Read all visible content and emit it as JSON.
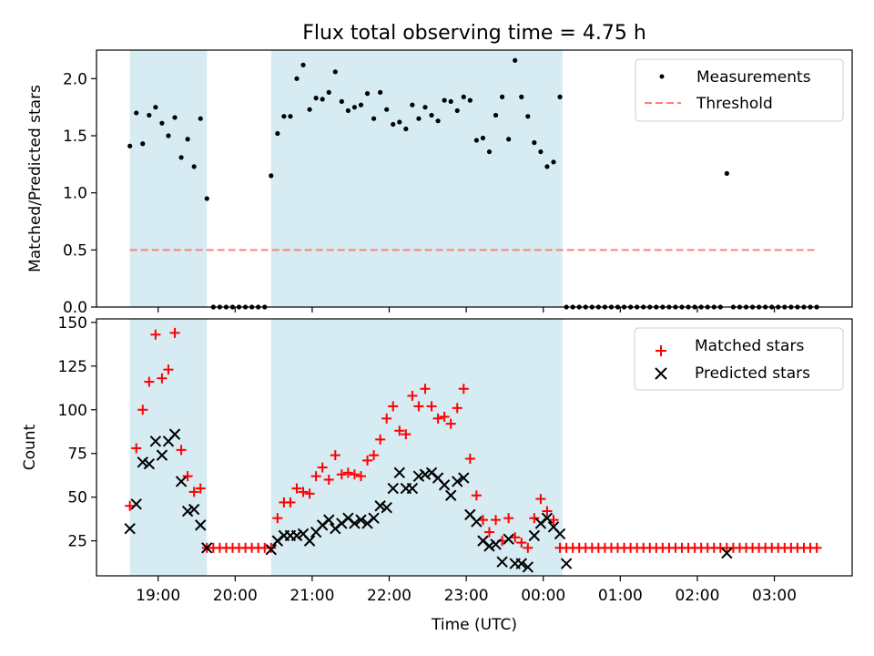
{
  "chart_data": [
    {
      "type": "scatter",
      "title": "Flux total observing time = 4.75 h",
      "ylabel": "Matched/Predicted stars",
      "ylim": [
        0,
        2.25
      ],
      "yticks": [
        "0.0",
        "0.5",
        "1.0",
        "1.5",
        "2.0"
      ],
      "shaded_intervals": [
        [
          "18:38",
          "19:38"
        ],
        [
          "20:28",
          "00:15"
        ]
      ],
      "shade_color": "#add8e6",
      "threshold": 0.5,
      "legend_position": "upper right",
      "series": [
        {
          "name": "Measurements",
          "marker": "dot",
          "color": "#000000",
          "x": [
            "18:38",
            "18:43",
            "18:48",
            "18:53",
            "18:58",
            "19:03",
            "19:08",
            "19:13",
            "19:18",
            "19:23",
            "19:28",
            "19:33",
            "19:38",
            "19:43",
            "19:48",
            "19:53",
            "19:58",
            "20:03",
            "20:08",
            "20:13",
            "20:18",
            "20:23",
            "20:28",
            "20:33",
            "20:38",
            "20:43",
            "20:48",
            "20:53",
            "20:58",
            "21:03",
            "21:08",
            "21:13",
            "21:18",
            "21:23",
            "21:28",
            "21:33",
            "21:38",
            "21:43",
            "21:48",
            "21:53",
            "21:58",
            "22:03",
            "22:08",
            "22:13",
            "22:18",
            "22:23",
            "22:28",
            "22:33",
            "22:38",
            "22:43",
            "22:48",
            "22:53",
            "22:58",
            "23:03",
            "23:08",
            "23:13",
            "23:18",
            "23:23",
            "23:28",
            "23:33",
            "23:38",
            "23:43",
            "23:48",
            "23:53",
            "23:58",
            "00:03",
            "00:08",
            "00:13",
            "00:18",
            "00:23",
            "00:28",
            "00:33",
            "00:38",
            "00:43",
            "00:48",
            "00:53",
            "00:58",
            "01:03",
            "01:08",
            "01:13",
            "01:18",
            "01:23",
            "01:28",
            "01:33",
            "01:38",
            "01:43",
            "01:48",
            "01:53",
            "01:58",
            "02:03",
            "02:08",
            "02:13",
            "02:18",
            "02:23",
            "02:28",
            "02:33",
            "02:38",
            "02:43",
            "02:48",
            "02:53",
            "02:58",
            "03:03",
            "03:08",
            "03:13",
            "03:18",
            "03:23",
            "03:28",
            "03:33"
          ],
          "y": [
            1.41,
            1.7,
            1.43,
            1.68,
            1.75,
            1.61,
            1.5,
            1.66,
            1.31,
            1.47,
            1.23,
            1.65,
            0.95,
            0,
            0,
            0,
            0,
            0,
            0,
            0,
            0,
            0,
            1.15,
            1.52,
            1.67,
            1.67,
            2.0,
            2.12,
            1.73,
            1.83,
            1.82,
            1.88,
            2.06,
            1.8,
            1.72,
            1.75,
            1.77,
            1.87,
            1.65,
            1.88,
            1.73,
            1.6,
            1.62,
            1.56,
            1.77,
            1.65,
            1.75,
            1.68,
            1.63,
            1.81,
            1.8,
            1.72,
            1.84,
            1.81,
            1.46,
            1.48,
            1.36,
            1.68,
            1.84,
            1.47,
            2.16,
            1.84,
            1.67,
            1.44,
            1.36,
            1.23,
            1.27,
            1.84,
            0,
            0,
            0,
            0,
            0,
            0,
            0,
            0,
            0,
            0,
            0,
            0,
            0,
            0,
            0,
            0,
            0,
            0,
            0,
            0,
            0,
            0,
            0,
            0,
            0,
            1.17,
            0,
            0,
            0,
            0,
            0,
            0,
            0,
            0,
            0,
            0,
            0,
            0,
            0,
            0
          ]
        },
        {
          "name": "Threshold",
          "marker": "dashed-line",
          "color": "#ff7f7f",
          "x": [
            "18:38",
            "03:33"
          ],
          "y": [
            0.5,
            0.5
          ]
        }
      ]
    },
    {
      "type": "scatter",
      "xlabel": "Time (UTC)",
      "ylabel": "Count",
      "ylim": [
        5,
        152
      ],
      "yticks": [
        "25",
        "50",
        "75",
        "100",
        "125",
        "150"
      ],
      "xticks": [
        "19:00",
        "20:00",
        "21:00",
        "22:00",
        "23:00",
        "00:00",
        "01:00",
        "02:00",
        "03:00"
      ],
      "shaded_intervals": [
        [
          "18:38",
          "19:38"
        ],
        [
          "20:28",
          "00:15"
        ]
      ],
      "shade_color": "#add8e6",
      "legend_position": "upper right",
      "series": [
        {
          "name": "Matched stars",
          "marker": "plus",
          "color": "#ff0000",
          "x": [
            "18:38",
            "18:43",
            "18:48",
            "18:53",
            "18:58",
            "19:03",
            "19:08",
            "19:13",
            "19:18",
            "19:23",
            "19:28",
            "19:33",
            "19:38",
            "19:43",
            "19:48",
            "19:53",
            "19:58",
            "20:03",
            "20:08",
            "20:13",
            "20:18",
            "20:23",
            "20:28",
            "20:33",
            "20:38",
            "20:43",
            "20:48",
            "20:53",
            "20:58",
            "21:03",
            "21:08",
            "21:13",
            "21:18",
            "21:23",
            "21:28",
            "21:33",
            "21:38",
            "21:43",
            "21:48",
            "21:53",
            "21:58",
            "22:03",
            "22:08",
            "22:13",
            "22:18",
            "22:23",
            "22:28",
            "22:33",
            "22:38",
            "22:43",
            "22:48",
            "22:53",
            "22:58",
            "23:03",
            "23:08",
            "23:13",
            "23:18",
            "23:23",
            "23:28",
            "23:33",
            "23:38",
            "23:43",
            "23:48",
            "23:53",
            "23:58",
            "00:03",
            "00:08",
            "00:13",
            "00:18",
            "00:23",
            "00:28",
            "00:33",
            "00:38",
            "00:43",
            "00:48",
            "00:53",
            "00:58",
            "01:03",
            "01:08",
            "01:13",
            "01:18",
            "01:23",
            "01:28",
            "01:33",
            "01:38",
            "01:43",
            "01:48",
            "01:53",
            "01:58",
            "02:03",
            "02:08",
            "02:13",
            "02:18",
            "02:23",
            "02:28",
            "02:33",
            "02:38",
            "02:43",
            "02:48",
            "02:53",
            "02:58",
            "03:03",
            "03:08",
            "03:13",
            "03:18",
            "03:23",
            "03:28",
            "03:33"
          ],
          "y": [
            45,
            78,
            100,
            116,
            143,
            118,
            123,
            144,
            77,
            62,
            53,
            55,
            21,
            21,
            21,
            21,
            21,
            21,
            21,
            21,
            21,
            21,
            21,
            38,
            47,
            47,
            55,
            53,
            52,
            62,
            67,
            60,
            74,
            63,
            64,
            63,
            62,
            71,
            74,
            83,
            95,
            102,
            88,
            86,
            108,
            102,
            112,
            102,
            95,
            96,
            92,
            101,
            112,
            72,
            51,
            37,
            30,
            37,
            25,
            38,
            27,
            24,
            21,
            38,
            49,
            42,
            37,
            21,
            21,
            21,
            21,
            21,
            21,
            21,
            21,
            21,
            21,
            21,
            21,
            21,
            21,
            21,
            21,
            21,
            21,
            21,
            21,
            21,
            21,
            21,
            21,
            21,
            21,
            21,
            21,
            21,
            21,
            21,
            21,
            21,
            21,
            21,
            21,
            21,
            21,
            21,
            21,
            21
          ]
        },
        {
          "name": "Predicted stars",
          "marker": "x",
          "color": "#000000",
          "x": [
            "18:38",
            "18:43",
            "18:48",
            "18:53",
            "18:58",
            "19:03",
            "19:08",
            "19:13",
            "19:18",
            "19:23",
            "19:28",
            "19:33",
            "19:38",
            "20:28",
            "20:33",
            "20:38",
            "20:43",
            "20:48",
            "20:53",
            "20:58",
            "21:03",
            "21:08",
            "21:13",
            "21:18",
            "21:23",
            "21:28",
            "21:33",
            "21:38",
            "21:43",
            "21:48",
            "21:53",
            "21:58",
            "22:03",
            "22:08",
            "22:13",
            "22:18",
            "22:23",
            "22:28",
            "22:33",
            "22:38",
            "22:43",
            "22:48",
            "22:53",
            "22:58",
            "23:03",
            "23:08",
            "23:13",
            "23:18",
            "23:23",
            "23:28",
            "23:33",
            "23:38",
            "23:43",
            "23:48",
            "23:53",
            "23:58",
            "00:03",
            "00:08",
            "00:13",
            "00:18",
            "02:23"
          ],
          "y": [
            32,
            46,
            70,
            69,
            82,
            74,
            82,
            86,
            59,
            42,
            43,
            34,
            21,
            20,
            25,
            28,
            28,
            28,
            29,
            25,
            30,
            34,
            37,
            32,
            35,
            38,
            35,
            37,
            35,
            38,
            45,
            44,
            55,
            64,
            55,
            55,
            62,
            63,
            64,
            61,
            57,
            51,
            59,
            61,
            40,
            36,
            25,
            22,
            23,
            13,
            26,
            12,
            12,
            10,
            28,
            35,
            38,
            33,
            29,
            12,
            18
          ]
        }
      ]
    }
  ]
}
